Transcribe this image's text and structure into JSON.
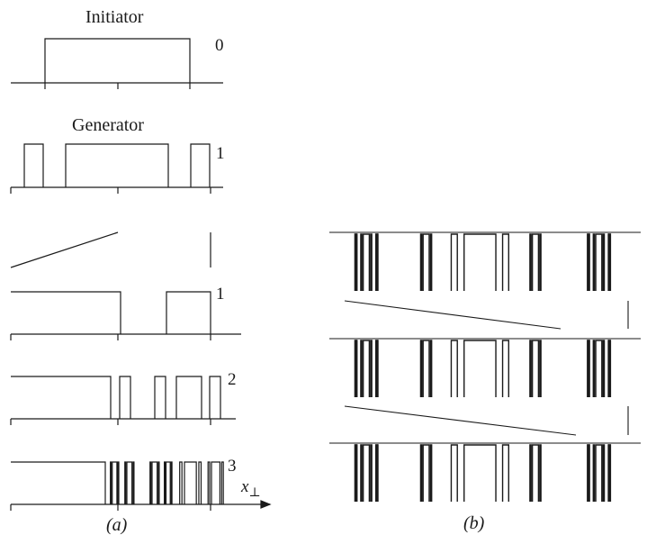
{
  "panel_a": {
    "caption": "(a)",
    "initiator_label": "Initiator",
    "generator_label": "Generator",
    "initiator_level": "0",
    "generator_level": "1",
    "level_1": "1",
    "level_2": "2",
    "level_3": "3",
    "axis_symbol": "x",
    "axis_subscript": "⊥"
  },
  "panel_b": {
    "caption": "(b)"
  },
  "style": {
    "ink": "#1a1a1a",
    "background": "#ffffff"
  }
}
